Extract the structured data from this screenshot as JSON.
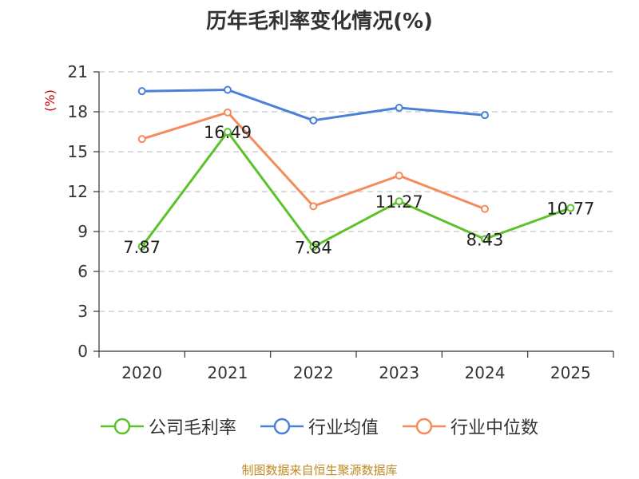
{
  "title": "历年毛利率变化情况(%)",
  "source": "制图数据来自恒生聚源数据库",
  "chart_data": {
    "type": "line",
    "title": "历年毛利率变化情况(%)",
    "categories": [
      "2020",
      "2021",
      "2022",
      "2023",
      "2024",
      "2025"
    ],
    "ylabel": "(%)",
    "ylim": [
      0,
      21
    ],
    "yticks": [
      "0",
      "3",
      "6",
      "9",
      "12",
      "15",
      "18",
      "21"
    ],
    "grid": true,
    "legend_position": "bottom",
    "series": [
      {
        "name": "公司毛利率",
        "color": "#5cc22a",
        "values": [
          7.87,
          16.49,
          7.84,
          11.27,
          8.43,
          10.77
        ],
        "labels": [
          "7.87",
          "16.49",
          "7.84",
          "11.27",
          "8.43",
          "10.77"
        ]
      },
      {
        "name": "行业均值",
        "color": "#4a80d8",
        "values": [
          19.55,
          19.65,
          17.35,
          18.3,
          17.75,
          null
        ]
      },
      {
        "name": "行业中位数",
        "color": "#f48b5b",
        "values": [
          15.95,
          17.95,
          10.9,
          13.2,
          10.7,
          null
        ]
      }
    ]
  }
}
